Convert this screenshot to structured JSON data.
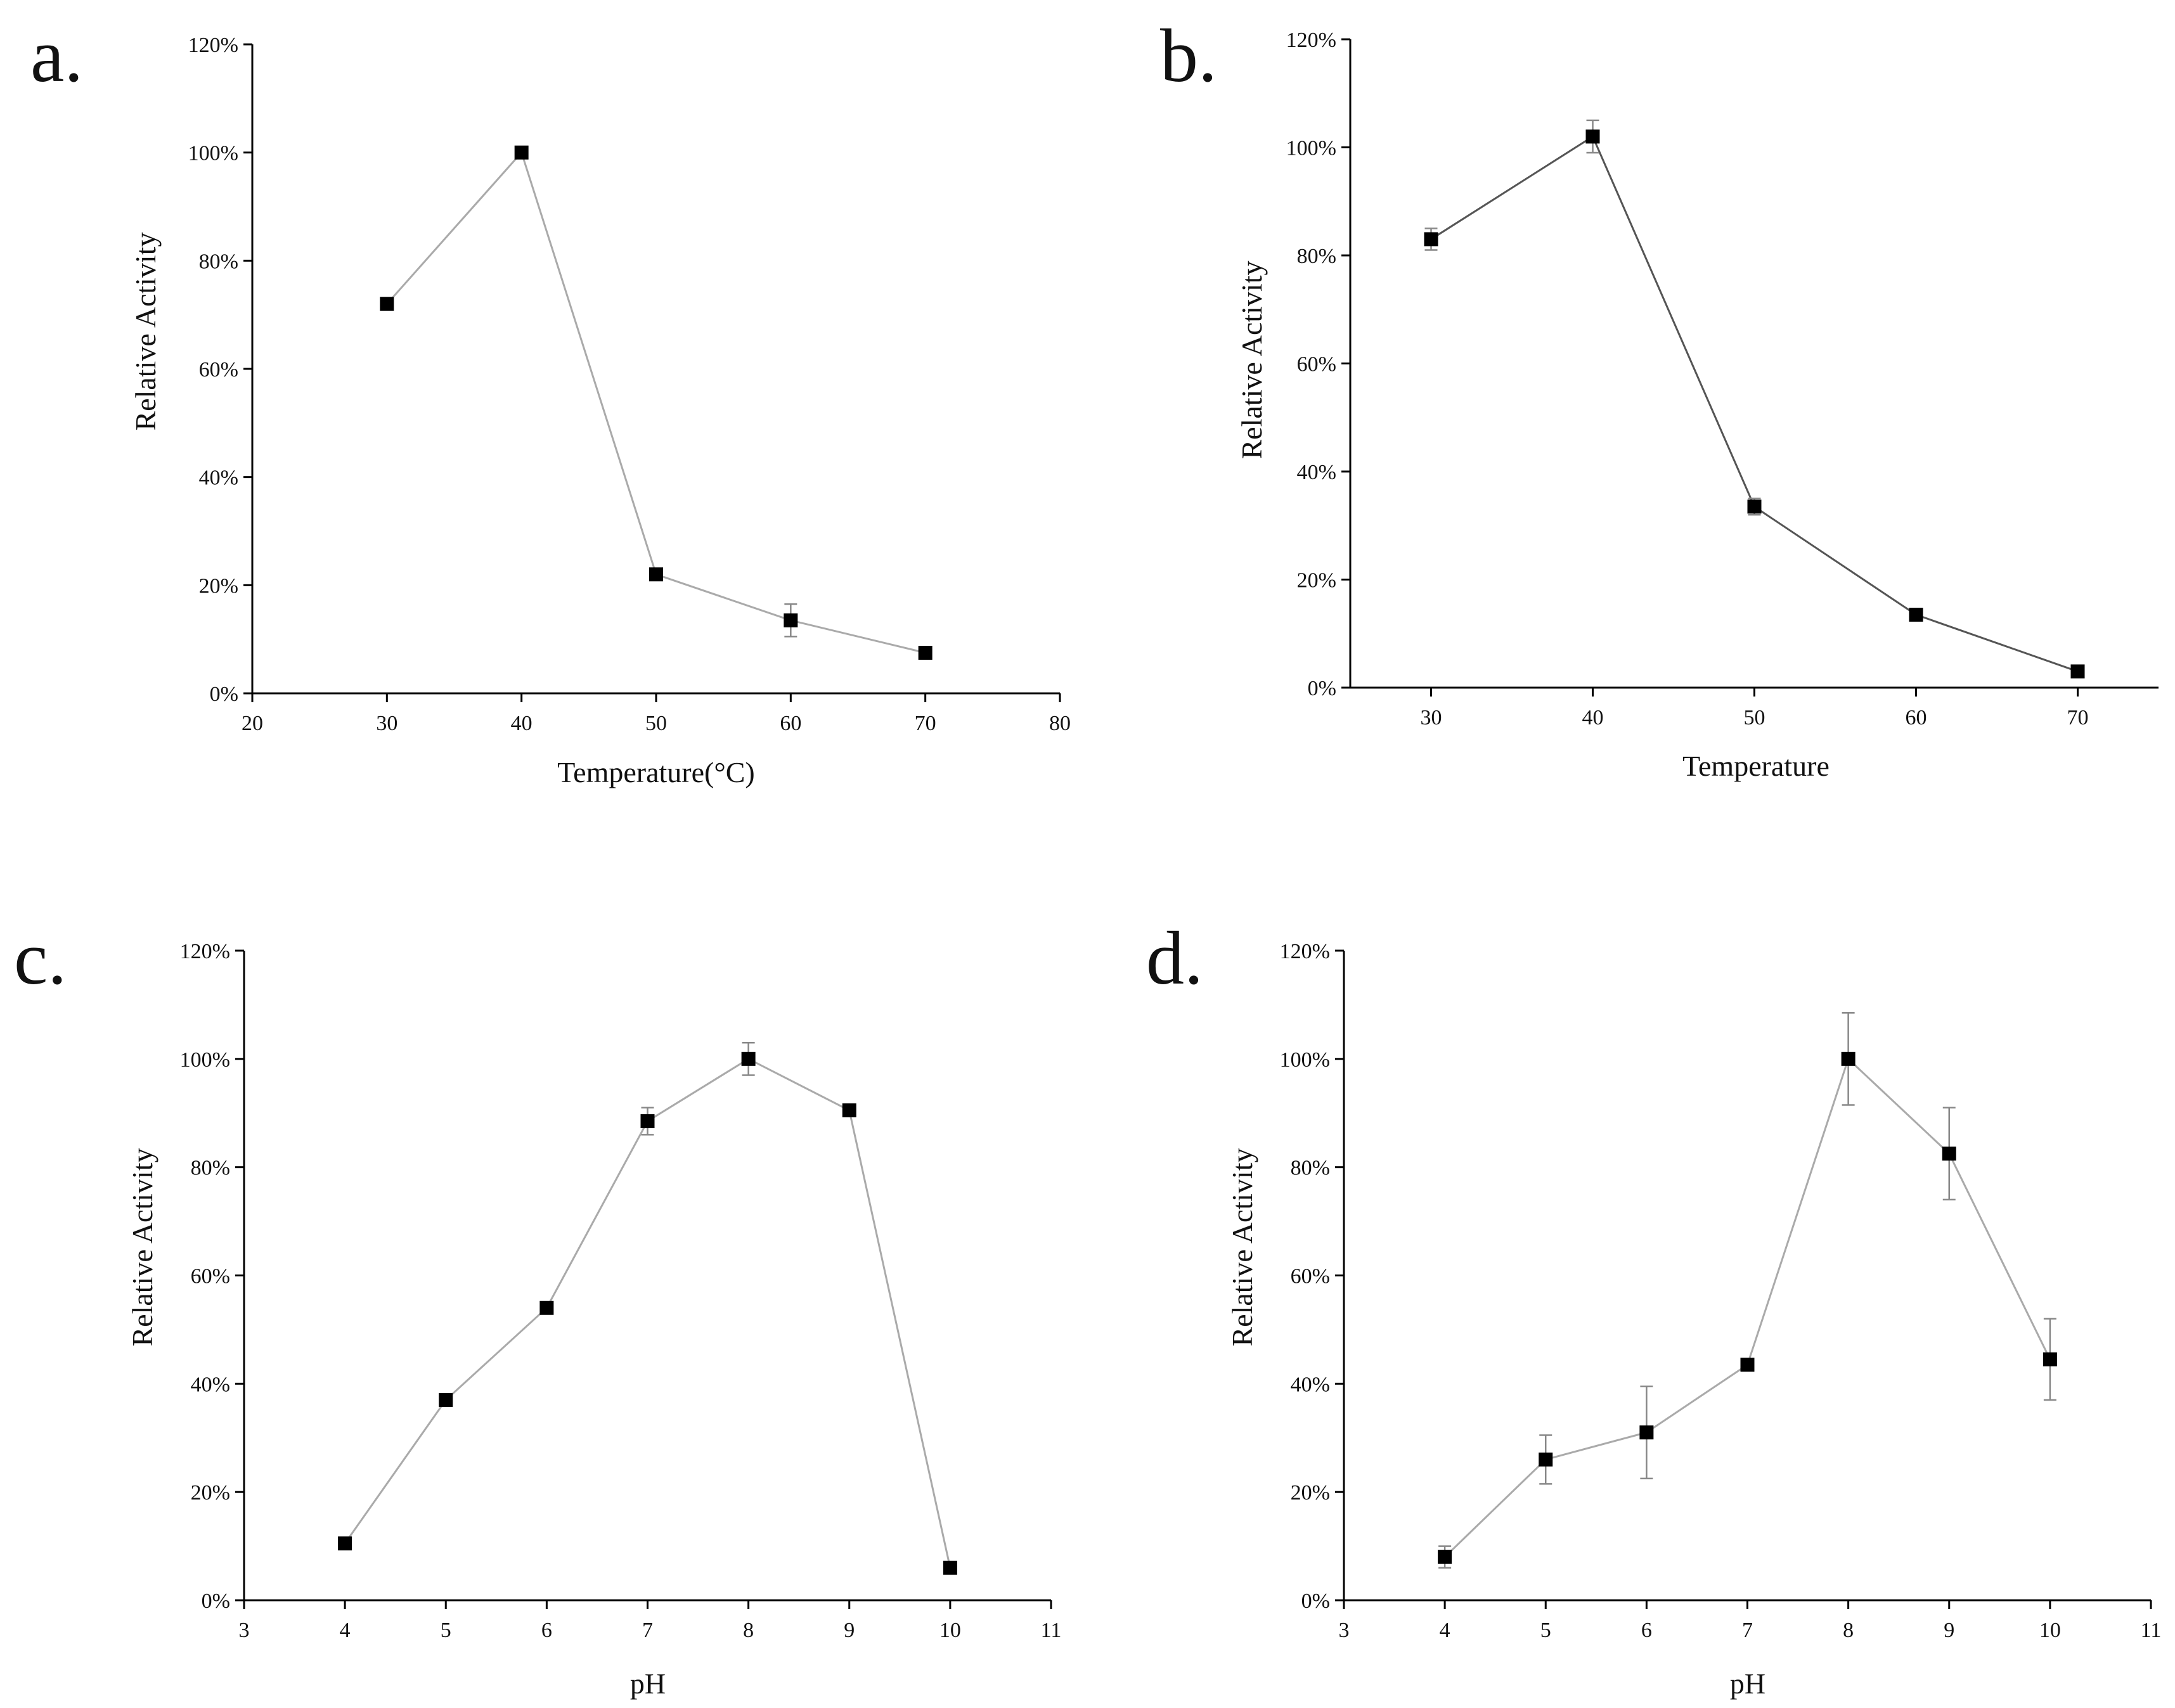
{
  "colors": {
    "axis": "#000000",
    "line_gray": "#aaaaaa",
    "line_dark": "#555555",
    "marker": "#000000",
    "errorbar": "#888888"
  },
  "chart_data": [
    {
      "id": "a",
      "type": "line",
      "panel_label": "a.",
      "xlabel": "Temperature(°C)",
      "ylabel": "Relative Activity",
      "xlim": [
        20,
        80
      ],
      "xticks": [
        20,
        30,
        40,
        50,
        60,
        70,
        80
      ],
      "xtick_labels": [
        "20",
        "30",
        "40",
        "50",
        "60",
        "70",
        "80"
      ],
      "ylim": [
        0,
        120
      ],
      "yticks": [
        0,
        20,
        40,
        60,
        80,
        100,
        120
      ],
      "ytick_labels": [
        "0%",
        "20%",
        "40%",
        "60%",
        "80%",
        "100%",
        "120%"
      ],
      "grid": false,
      "line_color": "line_gray",
      "series": [
        {
          "name": "Relative Activity",
          "x": [
            30,
            40,
            50,
            60,
            70
          ],
          "y": [
            72,
            100,
            22,
            13.5,
            7.5
          ],
          "err": [
            1,
            0.5,
            0.8,
            3,
            1
          ]
        }
      ]
    },
    {
      "id": "b",
      "type": "line",
      "panel_label": "b.",
      "xlabel": "Temperature",
      "ylabel": "Relative Activity",
      "xlim": [
        25,
        75
      ],
      "xticks": [
        30,
        40,
        50,
        60,
        70
      ],
      "xtick_labels": [
        "30",
        "40",
        "50",
        "60",
        "70"
      ],
      "ylim": [
        0,
        120
      ],
      "yticks": [
        0,
        20,
        40,
        60,
        80,
        100,
        120
      ],
      "ytick_labels": [
        "0%",
        "20%",
        "40%",
        "60%",
        "80%",
        "100%",
        "120%"
      ],
      "grid": false,
      "line_color": "line_dark",
      "series": [
        {
          "name": "Relative Activity",
          "x": [
            30,
            40,
            50,
            60,
            70
          ],
          "y": [
            83,
            102,
            33.5,
            13.5,
            3
          ],
          "err": [
            2,
            3,
            1.5,
            1,
            0.5
          ]
        }
      ]
    },
    {
      "id": "c",
      "type": "line",
      "panel_label": "c.",
      "xlabel": "pH",
      "ylabel": "Relative Activity",
      "xlim": [
        3,
        11
      ],
      "xticks": [
        3,
        4,
        5,
        6,
        7,
        8,
        9,
        10,
        11
      ],
      "xtick_labels": [
        "3",
        "4",
        "5",
        "6",
        "7",
        "8",
        "9",
        "10",
        "11"
      ],
      "ylim": [
        0,
        120
      ],
      "yticks": [
        0,
        20,
        40,
        60,
        80,
        100,
        120
      ],
      "ytick_labels": [
        "0%",
        "20%",
        "40%",
        "60%",
        "80%",
        "100%",
        "120%"
      ],
      "grid": false,
      "line_color": "line_gray",
      "series": [
        {
          "name": "Relative Activity",
          "x": [
            4,
            5,
            6,
            7,
            8,
            9,
            10
          ],
          "y": [
            10.5,
            37,
            54,
            88.5,
            100,
            90.5,
            6
          ],
          "err": [
            0.5,
            0.5,
            0.5,
            2.5,
            3,
            0.5,
            0.5
          ]
        }
      ]
    },
    {
      "id": "d",
      "type": "line",
      "panel_label": "d.",
      "xlabel": "pH",
      "ylabel": "Relative Activity",
      "xlim": [
        3,
        11
      ],
      "xticks": [
        3,
        4,
        5,
        6,
        7,
        8,
        9,
        10,
        11
      ],
      "xtick_labels": [
        "3",
        "4",
        "5",
        "6",
        "7",
        "8",
        "9",
        "10",
        "11"
      ],
      "ylim": [
        0,
        120
      ],
      "yticks": [
        0,
        20,
        40,
        60,
        80,
        100,
        120
      ],
      "ytick_labels": [
        "0%",
        "20%",
        "40%",
        "60%",
        "80%",
        "100%",
        "120%"
      ],
      "grid": false,
      "line_color": "line_gray",
      "series": [
        {
          "name": "Relative Activity",
          "x": [
            4,
            5,
            6,
            7,
            8,
            9,
            10
          ],
          "y": [
            8,
            26,
            31,
            43.5,
            100,
            82.5,
            44.5
          ],
          "err": [
            2,
            4.5,
            8.5,
            1,
            8.5,
            8.5,
            7.5
          ]
        }
      ]
    }
  ]
}
